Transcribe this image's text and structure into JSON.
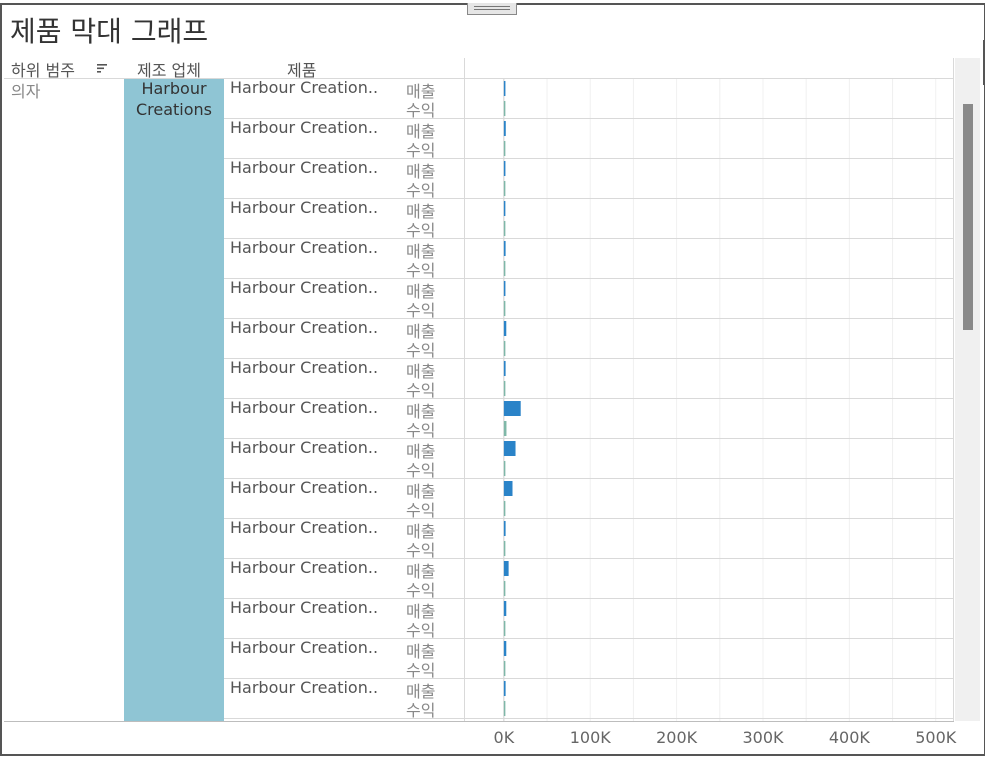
{
  "title": "제품 막대 그래프",
  "headers": {
    "subcategory": "하위 범주",
    "manufacturer": "제조 업체",
    "product": "제품"
  },
  "subcategory": "의자",
  "manufacturer": "Harbour Creations",
  "measure_labels": [
    "매출",
    "수익"
  ],
  "colors": {
    "sales_bar": "#2a83c8",
    "profit_bar": "#7fb8a8",
    "band": "#8fc5d4"
  },
  "icons": {
    "sort": "sort-descending-icon"
  },
  "chart_data": {
    "type": "bar",
    "orientation": "horizontal",
    "categories": [
      "Harbour Creation..",
      "Harbour Creation..",
      "Harbour Creation..",
      "Harbour Creation..",
      "Harbour Creation..",
      "Harbour Creation..",
      "Harbour Creation..",
      "Harbour Creation..",
      "Harbour Creation..",
      "Harbour Creation..",
      "Harbour Creation..",
      "Harbour Creation..",
      "Harbour Creation..",
      "Harbour Creation..",
      "Harbour Creation..",
      "Harbour Creation.."
    ],
    "series": [
      {
        "name": "매출",
        "values": [
          1800,
          2200,
          1800,
          1200,
          2000,
          1800,
          2800,
          2000,
          19500,
          13500,
          10000,
          2000,
          5500,
          2800,
          2800,
          2000
        ]
      },
      {
        "name": "수익",
        "values": [
          300,
          300,
          300,
          200,
          300,
          300,
          300,
          300,
          3000,
          1000,
          500,
          300,
          500,
          300,
          300,
          200
        ]
      }
    ],
    "xlim": [
      -45000,
      520000
    ],
    "xticks": [
      0,
      100000,
      200000,
      300000,
      400000,
      500000
    ],
    "xtick_labels": [
      "0K",
      "100K",
      "200K",
      "300K",
      "400K",
      "500K"
    ],
    "grid": true
  }
}
